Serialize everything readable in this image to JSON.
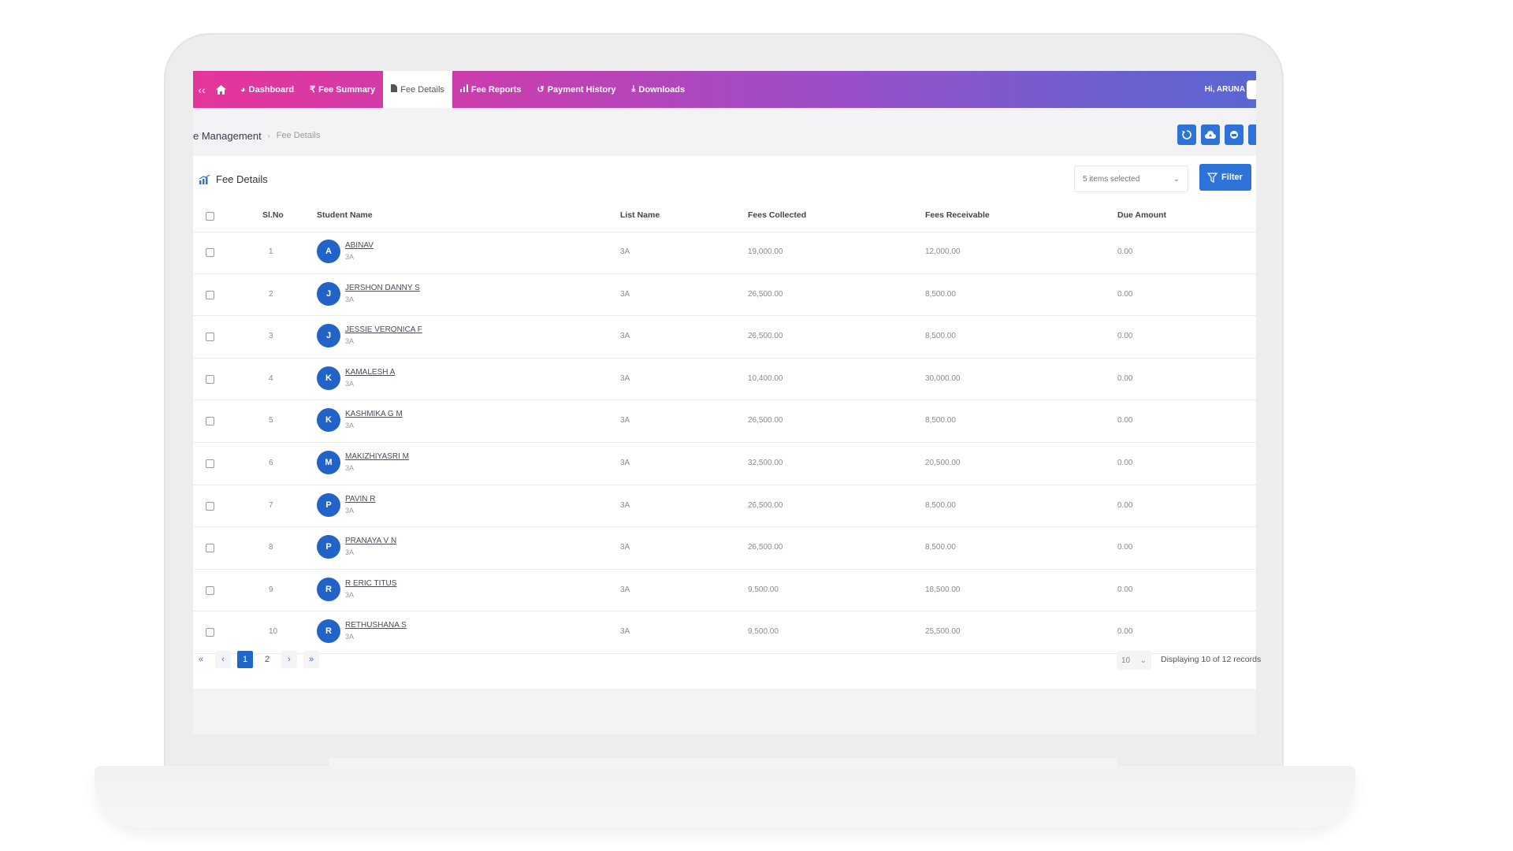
{
  "nav": {
    "items": [
      {
        "label": "Dashboard",
        "icon": "dashboard-icon"
      },
      {
        "label": "Fee Summary",
        "icon": "rupee-icon"
      },
      {
        "label": "Fee Details",
        "icon": "document-icon"
      },
      {
        "label": "Fee Reports",
        "icon": "chart-icon"
      },
      {
        "label": "Payment History",
        "icon": "history-icon"
      },
      {
        "label": "Downloads",
        "icon": "download-icon"
      }
    ],
    "active": "Fee Details",
    "user": "Hi, ARUNA"
  },
  "breadcrumb": {
    "main": "e Management",
    "current": "Fee Details"
  },
  "card": {
    "title": "Fee Details",
    "select_value": "5 items selected",
    "filter_label": "Filter"
  },
  "table": {
    "headers": {
      "slno": "Sl.No",
      "student": "Student Name",
      "list": "List Name",
      "collected": "Fees Collected",
      "receivable": "Fees Receivable",
      "due": "Due Amount"
    },
    "rows": [
      {
        "sl": "1",
        "initial": "A",
        "name": "ABINAV",
        "cls": "3A",
        "list": "3A",
        "collected": "19,000.00",
        "receivable": "12,000.00",
        "due": "0.00"
      },
      {
        "sl": "2",
        "initial": "J",
        "name": "JERSHON DANNY S",
        "cls": "3A",
        "list": "3A",
        "collected": "26,500.00",
        "receivable": "8,500.00",
        "due": "0.00"
      },
      {
        "sl": "3",
        "initial": "J",
        "name": "JESSIE VERONICA F",
        "cls": "3A",
        "list": "3A",
        "collected": "26,500.00",
        "receivable": "8,500.00",
        "due": "0.00"
      },
      {
        "sl": "4",
        "initial": "K",
        "name": "KAMALESH A",
        "cls": "3A",
        "list": "3A",
        "collected": "10,400.00",
        "receivable": "30,000.00",
        "due": "0.00"
      },
      {
        "sl": "5",
        "initial": "K",
        "name": "KASHMIKA G M",
        "cls": "3A",
        "list": "3A",
        "collected": "26,500.00",
        "receivable": "8,500.00",
        "due": "0.00"
      },
      {
        "sl": "6",
        "initial": "M",
        "name": "MAKIZHIYASRI M",
        "cls": "3A",
        "list": "3A",
        "collected": "32,500.00",
        "receivable": "20,500.00",
        "due": "0.00"
      },
      {
        "sl": "7",
        "initial": "P",
        "name": "PAVIN R",
        "cls": "3A",
        "list": "3A",
        "collected": "26,500.00",
        "receivable": "8,500.00",
        "due": "0.00"
      },
      {
        "sl": "8",
        "initial": "P",
        "name": "PRANAYA V N",
        "cls": "3A",
        "list": "3A",
        "collected": "26,500.00",
        "receivable": "8,500.00",
        "due": "0.00"
      },
      {
        "sl": "9",
        "initial": "R",
        "name": "R ERIC TITUS",
        "cls": "3A",
        "list": "3A",
        "collected": "9,500.00",
        "receivable": "18,500.00",
        "due": "0.00"
      },
      {
        "sl": "10",
        "initial": "R",
        "name": "RETHUSHANA S",
        "cls": "3A",
        "list": "3A",
        "collected": "9,500.00",
        "receivable": "25,500.00",
        "due": "0.00"
      }
    ]
  },
  "pager": {
    "first": "«",
    "prev": "‹",
    "pages": [
      "1",
      "2"
    ],
    "next": "›",
    "last": "»",
    "page_size": "10",
    "info": "Displaying 10 of 12 records"
  },
  "colors": {
    "accent": "#2e73d8",
    "avatar": "#2163c6",
    "nav_start": "#e5359a",
    "nav_end": "#5a67d2"
  }
}
